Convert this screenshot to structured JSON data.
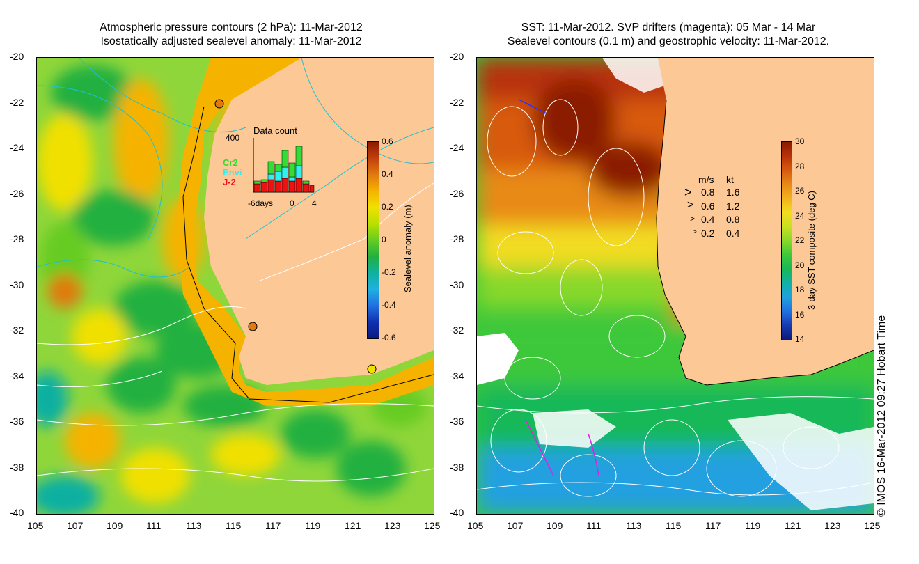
{
  "left_panel": {
    "title_line1": "Atmospheric pressure contours (2 hPa): 11-Mar-2012",
    "title_line2": "Isostatically adjusted sealevel anomaly: 11-Mar-2012",
    "colorbar": {
      "label": "Sealevel anomaly (m)",
      "ticks": [
        "0.6",
        "0.4",
        "0.2",
        "0",
        "-0.2",
        "-0.4",
        "-0.6"
      ],
      "colors": [
        "#8b1a00",
        "#c2410c",
        "#e07a10",
        "#f5b300",
        "#f0e000",
        "#b8e000",
        "#66cc22",
        "#22b040",
        "#10b0a0",
        "#20b0e0",
        "#2070e0",
        "#1030b0",
        "#0a1a80"
      ]
    },
    "inset": {
      "title": "Data count",
      "ymax_label": "400",
      "x_ticks": [
        "-6days",
        "0",
        "4"
      ],
      "legend": [
        {
          "name": "Cr2",
          "color": "#33dd33"
        },
        {
          "name": "Envi",
          "color": "#33eeee"
        },
        {
          "name": "J-2",
          "color": "#ee1111"
        }
      ]
    }
  },
  "right_panel": {
    "title_line1": "SST: 11-Mar-2012. SVP drifters (magenta): 05 Mar - 14 Mar",
    "title_line2": "Sealevel contours (0.1 m) and geostrophic velocity: 11-Mar-2012.",
    "colorbar": {
      "label": "3-day SST composite (deg C)",
      "ticks": [
        "30",
        "28",
        "26",
        "24",
        "22",
        "20",
        "18",
        "16",
        "14"
      ],
      "colors": [
        "#8b1a00",
        "#b83208",
        "#d85a10",
        "#e88a18",
        "#f2b21c",
        "#f2dc20",
        "#c8e020",
        "#88d82a",
        "#3cc83a",
        "#18b858",
        "#10b0a8",
        "#20a0e0",
        "#2070e0",
        "#1838b0",
        "#0a1a78"
      ]
    },
    "speed_legend": {
      "header_ms": "m/s",
      "header_kt": "kt",
      "rows": [
        {
          "ms": "0.8",
          "kt": "1.6"
        },
        {
          "ms": "0.6",
          "kt": "1.2"
        },
        {
          "ms": "0.4",
          "kt": "0.8"
        },
        {
          "ms": "0.2",
          "kt": "0.4"
        }
      ]
    }
  },
  "axes": {
    "lat_ticks": [
      "-20",
      "-22",
      "-24",
      "-26",
      "-28",
      "-30",
      "-32",
      "-34",
      "-36",
      "-38",
      "-40"
    ],
    "lon_ticks": [
      "105",
      "107",
      "109",
      "111",
      "113",
      "115",
      "117",
      "119",
      "121",
      "123",
      "125"
    ]
  },
  "credit": "© IMOS 16-Mar-2012 09:27 Hobart Time"
}
